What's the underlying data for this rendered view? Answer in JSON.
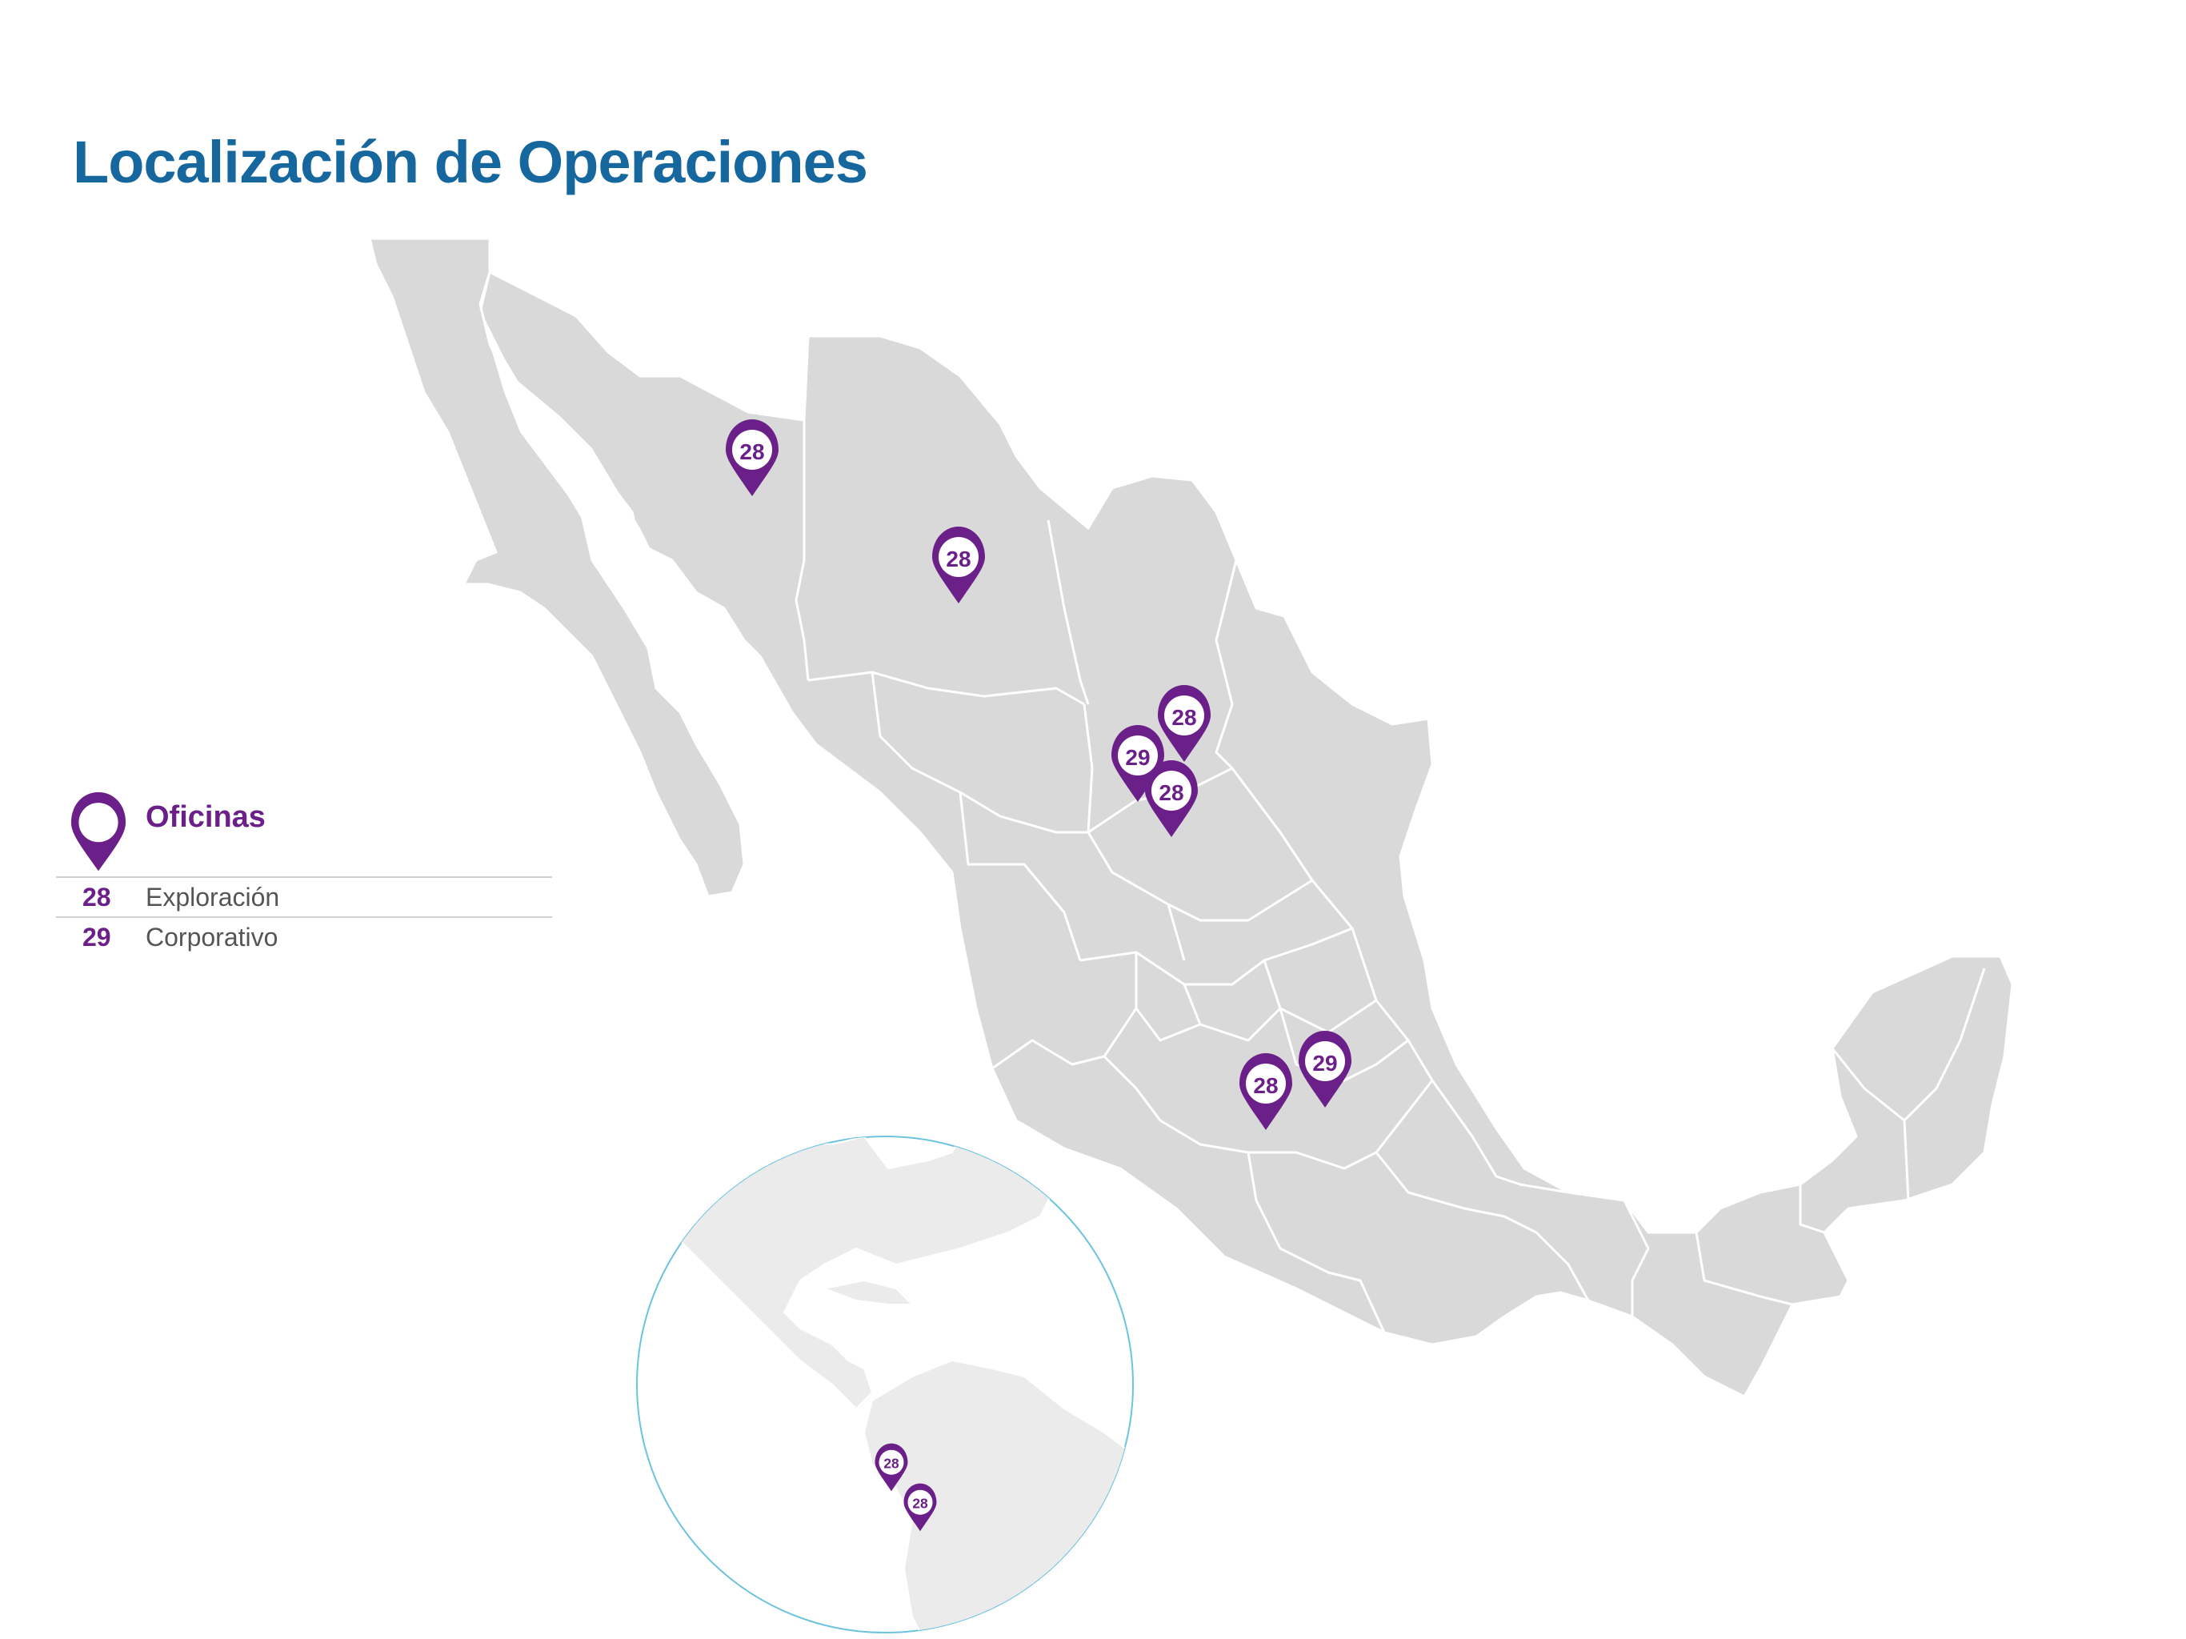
{
  "title": "Localización de Operaciones",
  "legend": {
    "heading": "Oficinas",
    "items": [
      {
        "number": "28",
        "label": "Exploración"
      },
      {
        "number": "29",
        "label": "Corporativo"
      }
    ]
  },
  "markers": {
    "mexico": [
      "28",
      "28",
      "28",
      "29",
      "28",
      "28",
      "29"
    ],
    "inset": [
      "28",
      "28"
    ]
  },
  "colors": {
    "title": "#17679f",
    "marker": "#6a2088",
    "land": "#d9d9d9",
    "inset_land": "#ebebeb",
    "inset_border": "#6cc3df"
  }
}
